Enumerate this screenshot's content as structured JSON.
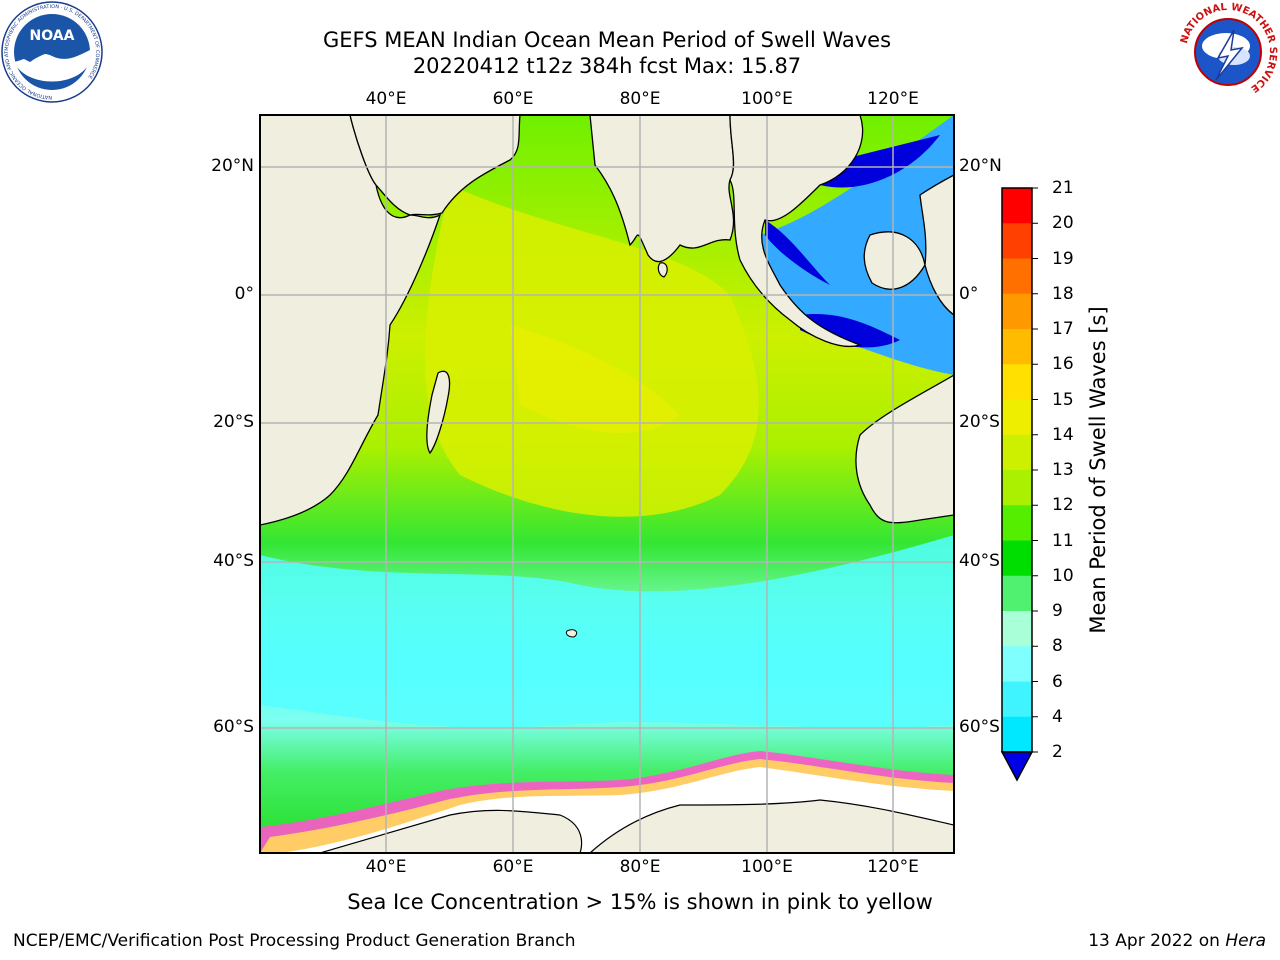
{
  "title": {
    "line1": "GEFS MEAN Indian Ocean Mean Period of Swell Waves",
    "line2": "20220412 t12z 384h fcst   Max: 15.87"
  },
  "logos": {
    "noaa_text": "NOAA",
    "noaa_ring_text": "NATIONAL OCEANIC AND ATMOSPHERIC ADMINISTRATION · U.S. DEPARTMENT OF COMMERCE",
    "nws_ring_text": "NATIONAL WEATHER SERVICE"
  },
  "map": {
    "lon_labels": [
      "40°E",
      "60°E",
      "80°E",
      "100°E",
      "120°E"
    ],
    "lat_labels": [
      "20°N",
      "0°",
      "20°S",
      "40°S",
      "60°S"
    ],
    "lon_range": [
      20,
      130
    ],
    "lat_range": [
      -75,
      28
    ],
    "ocean_color_scale": "period of swell waves",
    "land_color": "#efeedf",
    "grid": true
  },
  "colorbar": {
    "label": "Mean Period of Swell Waves [s]",
    "ticks": [
      "2",
      "4",
      "6",
      "8",
      "9",
      "10",
      "11",
      "12",
      "13",
      "14",
      "15",
      "16",
      "17",
      "18",
      "19",
      "20",
      "21"
    ],
    "colors": [
      "#0050ff",
      "#00e8ff",
      "#40f4ff",
      "#80ffff",
      "#a8ffd8",
      "#50f070",
      "#00dd00",
      "#55ee00",
      "#aaf000",
      "#ccf000",
      "#eeee00",
      "#ffe000",
      "#ffbb00",
      "#ff9900",
      "#ff7000",
      "#ff4000",
      "#ff0000"
    ],
    "under_color": "#0000e6"
  },
  "footnote": "Sea Ice Concentration > 15% is shown in pink to yellow",
  "credit": "NCEP/EMC/Verification Post Processing Product Generation Branch",
  "date": {
    "text": "13 Apr 2022 on",
    "host": "Hera"
  }
}
